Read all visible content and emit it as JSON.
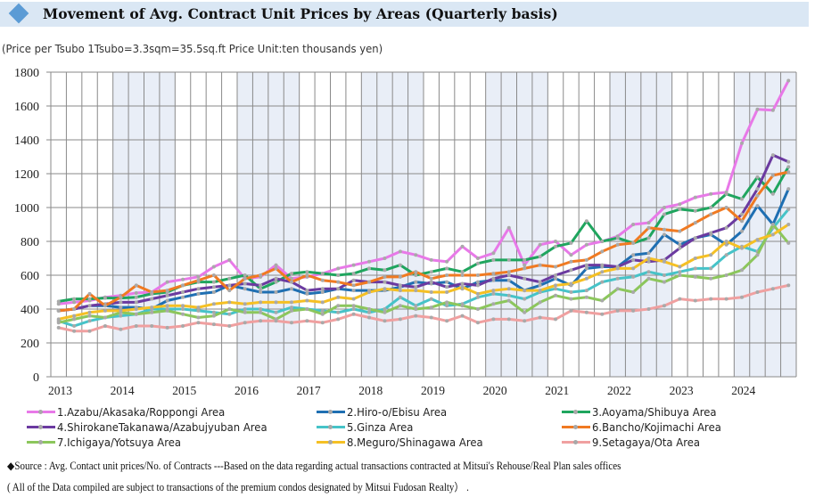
{
  "header": {
    "icon": "diamond-icon",
    "title": "Movement of Avg. Contract Unit Prices by Areas (Quarterly basis)"
  },
  "subtitle": "(Price per Tsubo  1Tsubo=3.3sqm=35.5sq.ft   Price Unit:ten thousands yen)",
  "footer": {
    "source": "◆Source : Avg. Contact unit prices/No. of  Contracts ---Based on the data regarding actual transactions contracted at Mitsui's Rehouse/Real Plan sales offices",
    "note": " ( All of the Data compiled are subject to transactions of the premium condos designated by Mitsui Fudosan Realty） ."
  },
  "chart_data": {
    "type": "line",
    "title": "Movement of Avg. Contract Unit Prices by Areas (Quarterly basis)",
    "xlabel": "",
    "ylabel": "Price per Tsubo (ten thousands yen)",
    "ylim": [
      0,
      1800
    ],
    "yticks": [
      0,
      200,
      400,
      600,
      800,
      1000,
      1200,
      1400,
      1600,
      1800
    ],
    "year_labels": [
      "2013",
      "2014",
      "2015",
      "2016",
      "2017",
      "2018",
      "2019",
      "2020",
      "2021",
      "2022",
      "2023",
      "2024"
    ],
    "quarters_per_year": 4,
    "shaded_years": [
      "2014",
      "2016",
      "2018",
      "2020",
      "2022",
      "2024"
    ],
    "shade_color": "#e9eef7",
    "grid": true,
    "legend_position": "bottom",
    "series": [
      {
        "name": "1.Azabu/Akasaka/Roppongi Area",
        "color": "#e879e8",
        "values": [
          430,
          440,
          450,
          470,
          480,
          495,
          500,
          560,
          575,
          590,
          650,
          690,
          580,
          590,
          660,
          580,
          590,
          610,
          640,
          660,
          680,
          700,
          740,
          720,
          690,
          680,
          770,
          700,
          730,
          880,
          660,
          780,
          800,
          720,
          780,
          800,
          830,
          900,
          910,
          1000,
          1020,
          1060,
          1080,
          1090,
          1380,
          1580,
          1575,
          1750
        ]
      },
      {
        "name": "2.Hiro-o/Ebisu Area",
        "color": "#1f6fb2",
        "values": [
          390,
          400,
          420,
          420,
          410,
          410,
          400,
          450,
          470,
          490,
          500,
          540,
          520,
          500,
          500,
          520,
          490,
          500,
          520,
          510,
          510,
          510,
          530,
          560,
          550,
          560,
          520,
          560,
          570,
          570,
          510,
          540,
          580,
          540,
          640,
          650,
          650,
          720,
          730,
          840,
          780,
          820,
          840,
          780,
          860,
          1010,
          900,
          1110
        ]
      },
      {
        "name": "3.Aoyama/Shibuya Area",
        "color": "#1fa55e",
        "values": [
          445,
          460,
          460,
          465,
          465,
          470,
          490,
          500,
          540,
          560,
          560,
          580,
          600,
          520,
          560,
          610,
          620,
          610,
          600,
          610,
          640,
          630,
          660,
          600,
          620,
          640,
          620,
          670,
          690,
          690,
          690,
          710,
          770,
          790,
          920,
          800,
          820,
          790,
          820,
          960,
          990,
          980,
          1000,
          1080,
          1050,
          1180,
          1080,
          1240
        ]
      },
      {
        "name": "4.ShirokaneTakanawa/Azabujyuban Area",
        "color": "#6b3aa0",
        "values": [
          390,
          400,
          420,
          430,
          440,
          440,
          460,
          480,
          500,
          520,
          530,
          540,
          550,
          540,
          580,
          560,
          510,
          520,
          520,
          570,
          560,
          560,
          540,
          530,
          560,
          530,
          550,
          540,
          580,
          600,
          580,
          560,
          600,
          630,
          660,
          660,
          650,
          690,
          680,
          690,
          760,
          820,
          850,
          880,
          960,
          1110,
          1310,
          1270
        ]
      },
      {
        "name": "5.Ginza Area",
        "color": "#46c3c8",
        "values": [
          330,
          300,
          330,
          350,
          360,
          370,
          400,
          400,
          400,
          390,
          380,
          370,
          400,
          400,
          380,
          410,
          400,
          390,
          380,
          400,
          380,
          400,
          470,
          420,
          460,
          420,
          430,
          470,
          490,
          480,
          460,
          500,
          520,
          500,
          510,
          560,
          580,
          590,
          620,
          600,
          620,
          640,
          640,
          720,
          770,
          740,
          880,
          990
        ]
      },
      {
        "name": "6.Bancho/Kojimachi Area",
        "color": "#f07a22",
        "values": [
          390,
          400,
          490,
          420,
          470,
          540,
          500,
          510,
          540,
          570,
          600,
          510,
          580,
          600,
          640,
          560,
          600,
          570,
          560,
          540,
          560,
          590,
          590,
          620,
          580,
          600,
          600,
          600,
          610,
          620,
          640,
          660,
          650,
          680,
          690,
          740,
          780,
          790,
          880,
          870,
          860,
          910,
          960,
          1000,
          920,
          1070,
          1190,
          1210
        ]
      },
      {
        "name": "7.Ichigaya/Yotsuya Area",
        "color": "#8cc65c",
        "values": [
          320,
          340,
          360,
          350,
          380,
          370,
          380,
          390,
          370,
          350,
          360,
          400,
          380,
          380,
          340,
          390,
          400,
          370,
          420,
          420,
          400,
          380,
          420,
          400,
          410,
          440,
          420,
          400,
          430,
          450,
          380,
          440,
          480,
          460,
          470,
          450,
          520,
          500,
          580,
          560,
          600,
          590,
          580,
          600,
          630,
          720,
          900,
          790
        ]
      },
      {
        "name": "8.Meguro/Shinagawa Area",
        "color": "#f5c024",
        "values": [
          340,
          360,
          380,
          390,
          390,
          400,
          410,
          420,
          420,
          410,
          430,
          440,
          430,
          440,
          440,
          440,
          450,
          440,
          470,
          460,
          500,
          520,
          510,
          510,
          500,
          500,
          530,
          490,
          510,
          520,
          510,
          510,
          540,
          550,
          580,
          620,
          640,
          640,
          700,
          680,
          650,
          700,
          720,
          800,
          760,
          810,
          840,
          900
        ]
      },
      {
        "name": "9.Setagaya/Ota Area",
        "color": "#f0a0a0",
        "values": [
          290,
          270,
          270,
          300,
          280,
          300,
          300,
          290,
          300,
          320,
          310,
          300,
          320,
          330,
          330,
          320,
          330,
          320,
          340,
          370,
          350,
          330,
          340,
          360,
          350,
          330,
          360,
          320,
          340,
          340,
          330,
          350,
          340,
          390,
          380,
          370,
          390,
          390,
          400,
          420,
          460,
          450,
          460,
          460,
          470,
          500,
          520,
          540
        ]
      }
    ]
  }
}
